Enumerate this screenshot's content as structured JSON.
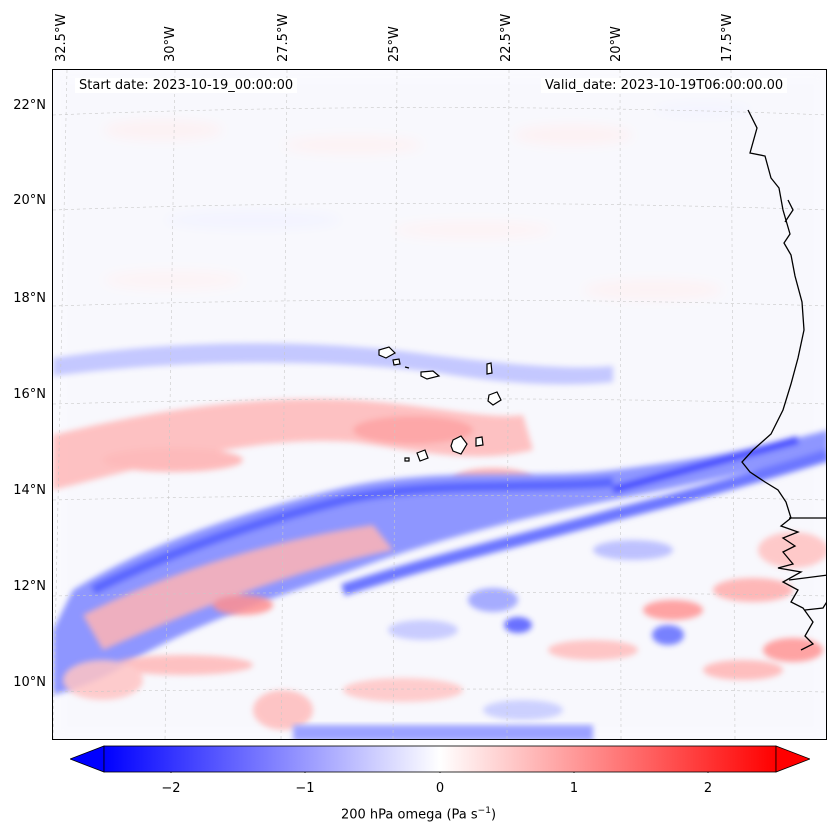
{
  "header": {
    "start_date": "Start date: 2023-10-19_00:00:00",
    "valid_date": "Valid_date: 2023-10-19T06:00:00.00"
  },
  "axes": {
    "lon_ticks": [
      "32.5°W",
      "30°W",
      "27.5°W",
      "25°W",
      "22.5°W",
      "20°W",
      "17.5°W"
    ],
    "lat_ticks": [
      "22°N",
      "20°N",
      "18°N",
      "16°N",
      "14°N",
      "12°N",
      "10°N"
    ]
  },
  "colorbar": {
    "ticks": [
      "−2",
      "−1",
      "0",
      "1",
      "2"
    ],
    "label_main": "200 hPa omega (Pa s",
    "label_exp": "−1",
    "label_close": ")",
    "range": [
      -2.5,
      2.5
    ],
    "low_color": "#0000ff",
    "high_color": "#ff0000"
  },
  "map": {
    "field": "200 hPa omega",
    "lon_range": [
      "32.5°W",
      "15°W"
    ],
    "lat_range": [
      "9°N",
      "22.7°N"
    ],
    "features": [
      "Cape Verde islands",
      "West African coastline"
    ]
  }
}
